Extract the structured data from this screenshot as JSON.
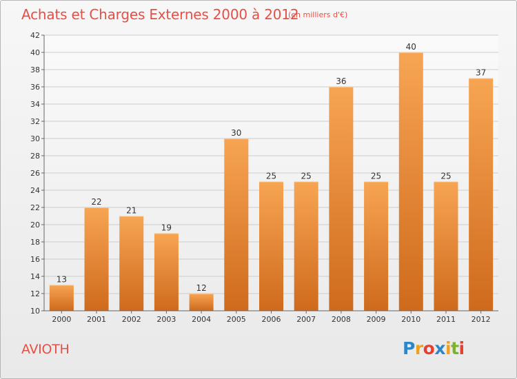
{
  "chart_data": {
    "type": "bar",
    "title": "Achats et Charges Externes 2000 à 2012",
    "subtitle": "(en milliers d'€)",
    "categories": [
      "2000",
      "2001",
      "2002",
      "2003",
      "2004",
      "2005",
      "2006",
      "2007",
      "2008",
      "2009",
      "2010",
      "2011",
      "2012"
    ],
    "values": [
      13,
      22,
      21,
      19,
      12,
      30,
      25,
      25,
      36,
      25,
      40,
      25,
      37
    ],
    "ylim": [
      10,
      42
    ],
    "yticks": [
      10,
      12,
      14,
      16,
      18,
      20,
      22,
      24,
      26,
      28,
      30,
      32,
      34,
      36,
      38,
      40,
      42
    ],
    "grid": true,
    "bar_color_top": "#f7a553",
    "bar_color_bottom": "#cf6a1c"
  },
  "footer": {
    "commune": "AVIOTH"
  },
  "logo": {
    "text": "Proxiti",
    "letters": [
      {
        "ch": "P",
        "color": "#2e86c8"
      },
      {
        "ch": "r",
        "color": "#f0a020"
      },
      {
        "ch": "o",
        "color": "#e84030"
      },
      {
        "ch": "x",
        "color": "#2e86c8"
      },
      {
        "ch": "i",
        "color": "#f0a020"
      },
      {
        "ch": "t",
        "color": "#7cb22c"
      },
      {
        "ch": "i",
        "color": "#e84030"
      }
    ]
  },
  "colors": {
    "title": "#e44f46",
    "grid": "#cccccc",
    "axis": "#666666"
  }
}
